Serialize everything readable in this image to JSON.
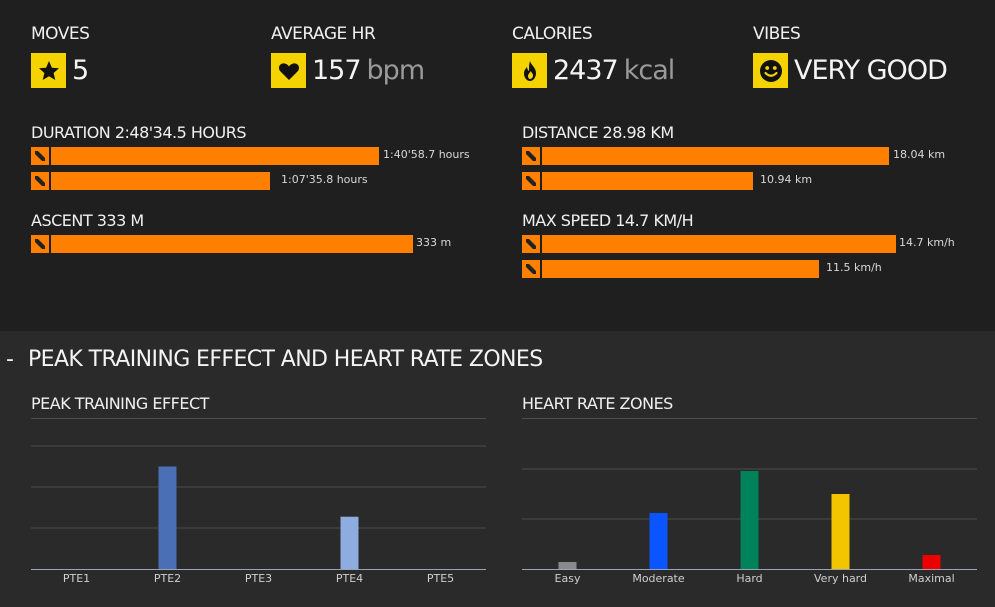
{
  "stats": {
    "moves": {
      "label": "MOVES",
      "value": "5",
      "icon": "star-icon"
    },
    "average_hr": {
      "label": "AVERAGE HR",
      "value": "157",
      "unit": "bpm",
      "icon": "heart-icon"
    },
    "calories": {
      "label": "CALORIES",
      "value": "2437",
      "unit": "kcal",
      "icon": "flame-icon"
    },
    "vibes": {
      "label": "VIBES",
      "value": "VERY GOOD",
      "icon": "smiley-icon"
    }
  },
  "metrics": {
    "duration": {
      "title": "DURATION 2:48'34.5 HOURS",
      "bars": [
        {
          "label": "1:40'58.7 hours",
          "value": 100.98
        },
        {
          "label": "1:07'35.8 hours",
          "value": 67.6
        }
      ]
    },
    "ascent": {
      "title": "ASCENT 333 M",
      "bars": [
        {
          "label": "333 m",
          "value": 333
        }
      ]
    },
    "distance": {
      "title": "DISTANCE 28.98 KM",
      "bars": [
        {
          "label": "18.04 km",
          "value": 18.04
        },
        {
          "label": "10.94 km",
          "value": 10.94
        }
      ]
    },
    "max_speed": {
      "title": "MAX SPEED 14.7 KM/H",
      "bars": [
        {
          "label": "14.7 km/h",
          "value": 14.7
        },
        {
          "label": "11.5 km/h",
          "value": 11.5
        }
      ]
    }
  },
  "bar_color": "#ff7f00",
  "badge_color": "#f5d300",
  "section": {
    "dash": "-",
    "title": "PEAK TRAINING EFFECT AND HEART RATE ZONES"
  },
  "chart_data": [
    {
      "type": "bar",
      "title": "PEAK TRAINING EFFECT",
      "categories": [
        "PTE1",
        "PTE2",
        "PTE3",
        "PTE4",
        "PTE5"
      ],
      "values": [
        0,
        100,
        0,
        51,
        0
      ],
      "colors": [
        "#5a7fc0",
        "#4a6fb5",
        "#5a7fc0",
        "#8eacdf",
        "#5a7fc0"
      ],
      "ylim": [
        0,
        120
      ],
      "grid": true
    },
    {
      "type": "bar",
      "title": "HEART RATE ZONES",
      "categories": [
        "Easy",
        "Moderate",
        "Hard",
        "Very hard",
        "Maximal"
      ],
      "values": [
        7,
        56,
        98,
        75,
        14
      ],
      "colors": [
        "#8a8a8a",
        "#0a55ff",
        "#00825a",
        "#f2c500",
        "#ee0000"
      ],
      "ylim": [
        0,
        100
      ],
      "grid": true
    }
  ]
}
